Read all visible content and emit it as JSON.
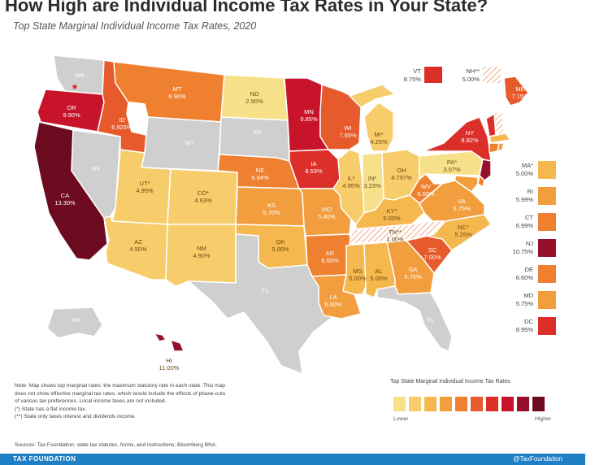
{
  "header": {
    "title": "How High are Individual Income Tax Rates in Your State?",
    "subtitle": "Top State Marginal Individual Income Tax Rates, 2020"
  },
  "colors": {
    "none": "#cfcfcf",
    "c1": "#f7e08a",
    "c2": "#f7cc6a",
    "c3": "#f5b84e",
    "c4": "#f29e3e",
    "c5": "#ef8030",
    "c6": "#e65a2b",
    "c7": "#dc2f2a",
    "c8": "#c8142a",
    "c9": "#96102b",
    "c10": "#6c0a1f",
    "hatch_bg": "#ffffff",
    "hatch_line": "#f0b090"
  },
  "map_data": {
    "states": [
      {
        "code": "WA",
        "label": "WA",
        "rate": "",
        "tier": "none"
      },
      {
        "code": "OR",
        "label": "OR",
        "rate": "9.90%",
        "tier": "c8"
      },
      {
        "code": "CA",
        "label": "CA",
        "rate": "13.30%",
        "tier": "c10"
      },
      {
        "code": "NV",
        "label": "NV",
        "rate": "",
        "tier": "none"
      },
      {
        "code": "ID",
        "label": "ID",
        "rate": "6.925%",
        "tier": "c6"
      },
      {
        "code": "MT",
        "label": "MT",
        "rate": "6.90%",
        "tier": "c5"
      },
      {
        "code": "WY",
        "label": "WY",
        "rate": "",
        "tier": "none"
      },
      {
        "code": "UT",
        "label": "UT*",
        "rate": "4.95%",
        "tier": "c2"
      },
      {
        "code": "AZ",
        "label": "AZ",
        "rate": "4.50%",
        "tier": "c2"
      },
      {
        "code": "CO",
        "label": "CO*",
        "rate": "4.63%",
        "tier": "c2"
      },
      {
        "code": "NM",
        "label": "NM",
        "rate": "4.90%",
        "tier": "c2"
      },
      {
        "code": "ND",
        "label": "ND",
        "rate": "2.90%",
        "tier": "c1"
      },
      {
        "code": "SD",
        "label": "SD",
        "rate": "",
        "tier": "none"
      },
      {
        "code": "NE",
        "label": "NE",
        "rate": "6.84%",
        "tier": "c5"
      },
      {
        "code": "KS",
        "label": "KS",
        "rate": "5.70%",
        "tier": "c4"
      },
      {
        "code": "OK",
        "label": "OK",
        "rate": "5.00%",
        "tier": "c3"
      },
      {
        "code": "TX",
        "label": "TX",
        "rate": "",
        "tier": "none"
      },
      {
        "code": "MN",
        "label": "MN",
        "rate": "9.85%",
        "tier": "c8"
      },
      {
        "code": "IA",
        "label": "IA",
        "rate": "8.53%",
        "tier": "c7"
      },
      {
        "code": "MO",
        "label": "MO",
        "rate": "5.40%",
        "tier": "c4"
      },
      {
        "code": "AR",
        "label": "AR",
        "rate": "6.60%",
        "tier": "c5"
      },
      {
        "code": "LA",
        "label": "LA",
        "rate": "6.00%",
        "tier": "c4"
      },
      {
        "code": "WI",
        "label": "WI",
        "rate": "7.65%",
        "tier": "c6"
      },
      {
        "code": "IL",
        "label": "IL*",
        "rate": "4.95%",
        "tier": "c2"
      },
      {
        "code": "MI",
        "label": "MI*",
        "rate": "4.25%",
        "tier": "c2"
      },
      {
        "code": "IN",
        "label": "IN*",
        "rate": "3.23%",
        "tier": "c1"
      },
      {
        "code": "OH",
        "label": "OH",
        "rate": "4.797%",
        "tier": "c2"
      },
      {
        "code": "KY",
        "label": "KY*",
        "rate": "5.00%",
        "tier": "c3"
      },
      {
        "code": "TN",
        "label": "TN**",
        "rate": "1.00%",
        "tier": "hatch"
      },
      {
        "code": "MS",
        "label": "MS",
        "rate": "5.00%",
        "tier": "c3"
      },
      {
        "code": "AL",
        "label": "AL",
        "rate": "5.00%",
        "tier": "c3"
      },
      {
        "code": "GA",
        "label": "GA",
        "rate": "5.75%",
        "tier": "c4"
      },
      {
        "code": "FL",
        "label": "FL",
        "rate": "",
        "tier": "none"
      },
      {
        "code": "SC",
        "label": "SC",
        "rate": "7.00%",
        "tier": "c6"
      },
      {
        "code": "NC",
        "label": "NC*",
        "rate": "5.25%",
        "tier": "c3"
      },
      {
        "code": "VA",
        "label": "VA",
        "rate": "5.75%",
        "tier": "c4"
      },
      {
        "code": "WV",
        "label": "WV",
        "rate": "6.50%",
        "tier": "c5"
      },
      {
        "code": "PA",
        "label": "PA*",
        "rate": "3.07%",
        "tier": "c1"
      },
      {
        "code": "NY",
        "label": "NY",
        "rate": "8.82%",
        "tier": "c7"
      },
      {
        "code": "ME",
        "label": "ME",
        "rate": "7.15%",
        "tier": "c6"
      },
      {
        "code": "AK",
        "label": "AK",
        "rate": "",
        "tier": "none"
      },
      {
        "code": "HI",
        "label": "HI",
        "rate": "11.00%",
        "tier": "c9"
      }
    ],
    "top_callouts": [
      {
        "code": "VT",
        "label": "VT",
        "rate": "8.75%",
        "tier": "c7"
      },
      {
        "code": "NH",
        "label": "NH**",
        "rate": "5.00%",
        "tier": "hatch"
      }
    ],
    "side_callouts": [
      {
        "code": "MA",
        "label": "MA*",
        "rate": "5.00%",
        "tier": "c3"
      },
      {
        "code": "RI",
        "label": "RI",
        "rate": "5.99%",
        "tier": "c4"
      },
      {
        "code": "CT",
        "label": "CT",
        "rate": "6.99%",
        "tier": "c5"
      },
      {
        "code": "NJ",
        "label": "NJ",
        "rate": "10.75%",
        "tier": "c9"
      },
      {
        "code": "DE",
        "label": "DE",
        "rate": "6.60%",
        "tier": "c5"
      },
      {
        "code": "MD",
        "label": "MD",
        "rate": "5.75%",
        "tier": "c4"
      },
      {
        "code": "DC",
        "label": "DC",
        "rate": "8.95%",
        "tier": "c7"
      }
    ]
  },
  "legend": {
    "title": "Top State Marginal Individual Income Tax Rates",
    "low": "Lower",
    "high": "Higher",
    "tiers": [
      "c1",
      "c2",
      "c3",
      "c4",
      "c5",
      "c6",
      "c7",
      "c8",
      "c9",
      "c10"
    ]
  },
  "notes": [
    "Note: Map shows top marginal rates: the maximum statutory rate in each state. This map",
    "does not show effective marginal tax rates, which would include the effects of phase-outs",
    "of various tax preferences. Local income taxes are not included.",
    "(*) State has a flat income tax.",
    "(**) State only taxes interest and dividends income."
  ],
  "sources": "Sources: Tax Foundation; state tax statutes, forms, and instructions; Bloomberg BNA.",
  "footer": {
    "left": "TAX FOUNDATION",
    "right": "@TaxFoundation"
  }
}
